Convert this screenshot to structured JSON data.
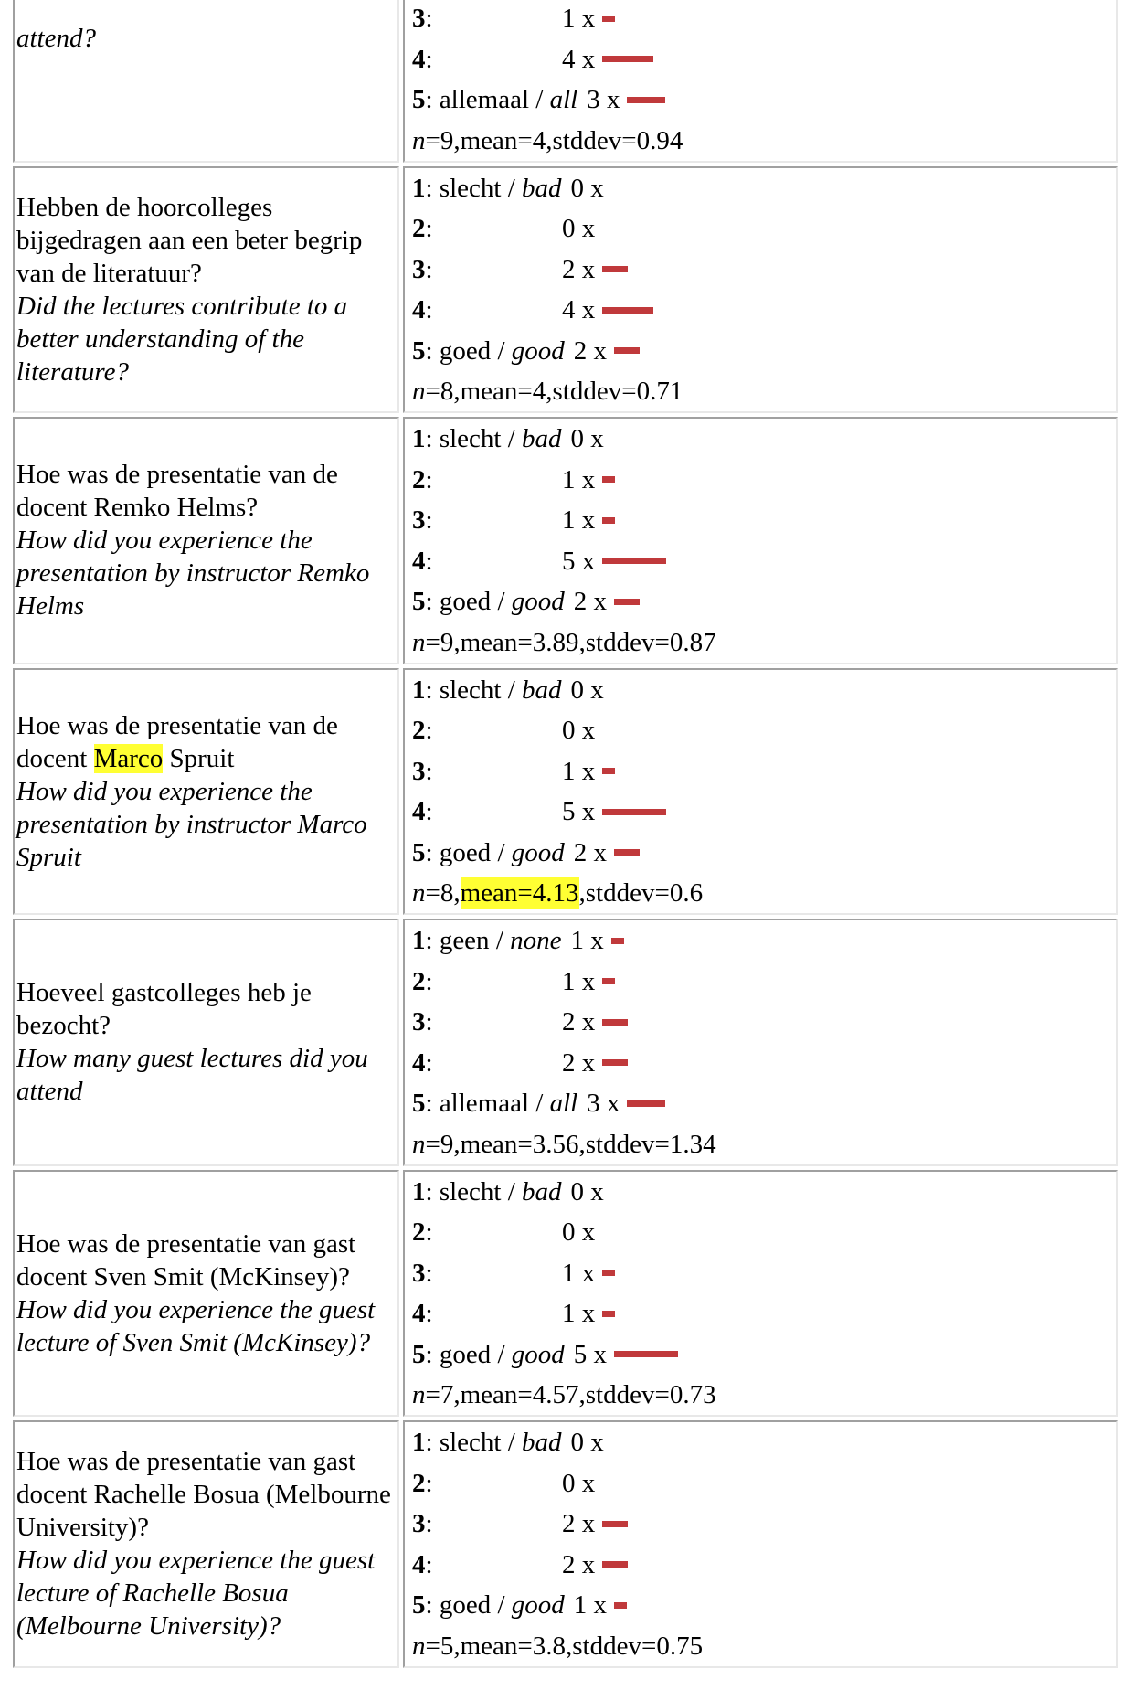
{
  "bar_color": "#c0393b",
  "highlight_color": "#ffff33",
  "questions": [
    {
      "q_nl": "",
      "q_en": "attend?",
      "answers": [
        {
          "num": "3",
          "label": "",
          "count": "1 x",
          "value": 1
        },
        {
          "num": "4",
          "label": "",
          "count": "4 x",
          "value": 4
        },
        {
          "num": "5",
          "label": "allemaal",
          "label_en": "all",
          "count": "3 x",
          "value": 3
        }
      ],
      "stats": {
        "n": "9",
        "mean": "mean=4",
        "stddev": "stddev=0.94"
      }
    },
    {
      "q_nl": "Hebben de hoorcolleges bijgedragen aan een beter begrip van de literatuur?",
      "q_en": "Did the lectures contribute to a better understanding of the literature?",
      "answers": [
        {
          "num": "1",
          "label": "slecht",
          "label_en": "bad",
          "count": "0 x",
          "value": 0
        },
        {
          "num": "2",
          "label": "",
          "count": "0 x",
          "value": 0
        },
        {
          "num": "3",
          "label": "",
          "count": "2 x",
          "value": 2
        },
        {
          "num": "4",
          "label": "",
          "count": "4 x",
          "value": 4
        },
        {
          "num": "5",
          "label": "goed",
          "label_en": "good",
          "count": "2 x",
          "value": 2
        }
      ],
      "stats": {
        "n": "8",
        "mean": "mean=4",
        "stddev": "stddev=0.71"
      }
    },
    {
      "q_nl": "Hoe was de presentatie van de docent Remko Helms?",
      "q_en": "How did you experience the presentation by instructor Remko Helms",
      "answers": [
        {
          "num": "1",
          "label": "slecht",
          "label_en": "bad",
          "count": "0 x",
          "value": 0
        },
        {
          "num": "2",
          "label": "",
          "count": "1 x",
          "value": 1
        },
        {
          "num": "3",
          "label": "",
          "count": "1 x",
          "value": 1
        },
        {
          "num": "4",
          "label": "",
          "count": "5 x",
          "value": 5
        },
        {
          "num": "5",
          "label": "goed",
          "label_en": "good",
          "count": "2 x",
          "value": 2
        }
      ],
      "stats": {
        "n": "9",
        "mean": "mean=3.89",
        "stddev": "stddev=0.87"
      }
    },
    {
      "q_nl_pre": "Hoe was de presentatie van de docent",
      "q_nl_hl": "Marco",
      "q_nl_post": "Spruit",
      "q_en": "How did you experience the presentation by instructor Marco Spruit",
      "answers": [
        {
          "num": "1",
          "label": "slecht",
          "label_en": "bad",
          "count": "0 x",
          "value": 0
        },
        {
          "num": "2",
          "label": "",
          "count": "0 x",
          "value": 0
        },
        {
          "num": "3",
          "label": "",
          "count": "1 x",
          "value": 1
        },
        {
          "num": "4",
          "label": "",
          "count": "5 x",
          "value": 5
        },
        {
          "num": "5",
          "label": "goed",
          "label_en": "good",
          "count": "2 x",
          "value": 2
        }
      ],
      "stats": {
        "n": "8",
        "mean": "mean=4.13",
        "stddev": "stddev=0.6"
      }
    },
    {
      "q_nl": "Hoeveel gastcolleges heb je bezocht?",
      "q_en": "How many guest lectures did you attend",
      "answers": [
        {
          "num": "1",
          "label": "geen",
          "label_en": "none",
          "count": "1 x",
          "value": 1
        },
        {
          "num": "2",
          "label": "",
          "count": "1 x",
          "value": 1
        },
        {
          "num": "3",
          "label": "",
          "count": "2 x",
          "value": 2
        },
        {
          "num": "4",
          "label": "",
          "count": "2 x",
          "value": 2
        },
        {
          "num": "5",
          "label": "allemaal",
          "label_en": "all",
          "count": "3 x",
          "value": 3
        }
      ],
      "stats": {
        "n": "9",
        "mean": "mean=3.56",
        "stddev": "stddev=1.34"
      }
    },
    {
      "q_nl": "Hoe was de presentatie van gast docent Sven Smit (McKinsey)?",
      "q_en": "How did you experience the guest lecture of Sven Smit (McKinsey)?",
      "answers": [
        {
          "num": "1",
          "label": "slecht",
          "label_en": "bad",
          "count": "0 x",
          "value": 0
        },
        {
          "num": "2",
          "label": "",
          "count": "0 x",
          "value": 0
        },
        {
          "num": "3",
          "label": "",
          "count": "1 x",
          "value": 1
        },
        {
          "num": "4",
          "label": "",
          "count": "1 x",
          "value": 1
        },
        {
          "num": "5",
          "label": "goed",
          "label_en": "good",
          "count": "5 x",
          "value": 5
        }
      ],
      "stats": {
        "n": "7",
        "mean": "mean=4.57",
        "stddev": "stddev=0.73"
      }
    },
    {
      "q_nl": "Hoe was de presentatie van gast docent Rachelle Bosua (Melbourne University)?",
      "q_en": "How did you experience the guest lecture of Rachelle Bosua (Melbourne University)?",
      "answers": [
        {
          "num": "1",
          "label": "slecht",
          "label_en": "bad",
          "count": "0 x",
          "value": 0
        },
        {
          "num": "2",
          "label": "",
          "count": "0 x",
          "value": 0
        },
        {
          "num": "3",
          "label": "",
          "count": "2 x",
          "value": 2
        },
        {
          "num": "4",
          "label": "",
          "count": "2 x",
          "value": 2
        },
        {
          "num": "5",
          "label": "goed",
          "label_en": "good",
          "count": "1 x",
          "value": 1
        }
      ],
      "stats": {
        "n": "5",
        "mean": "mean=3.8",
        "stddev": "stddev=0.75"
      }
    }
  ]
}
